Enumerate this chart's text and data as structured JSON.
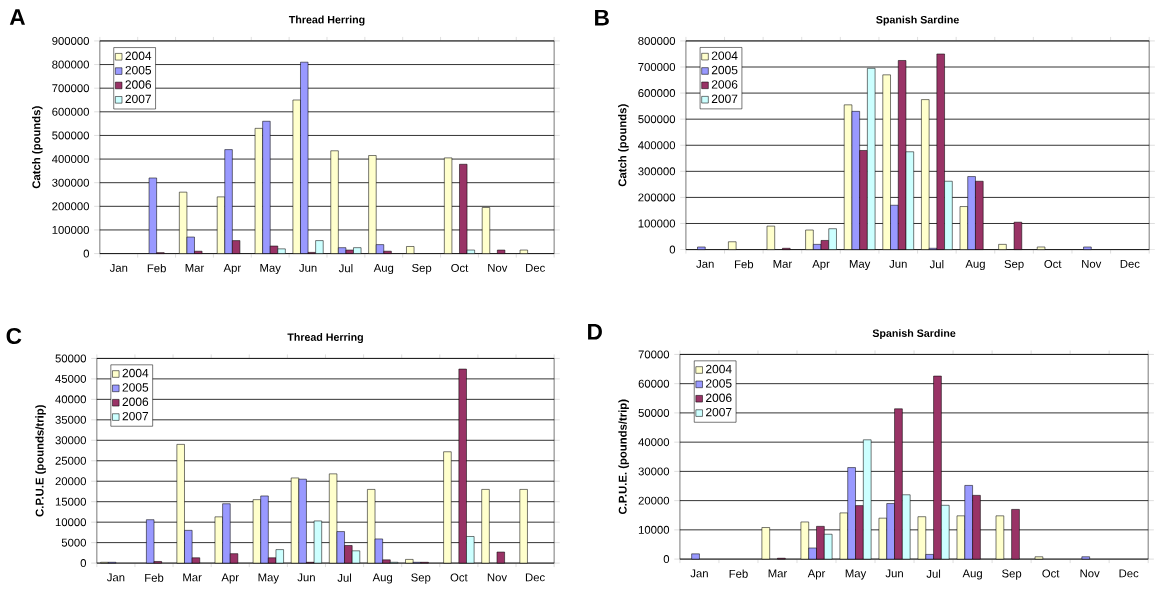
{
  "chart_data": [
    {
      "type": "bar",
      "title": "Thread Herring",
      "ylabel": "Catch (pounds)",
      "annotations": [
        "A"
      ],
      "categories": [
        "Jan",
        "Feb",
        "Mar",
        "Apr",
        "May",
        "Jun",
        "Jul",
        "Aug",
        "Sep",
        "Oct",
        "Nov",
        "Dec"
      ],
      "series": [
        {
          "name": "2004",
          "color": "#ffffcc",
          "values": [
            null,
            null,
            260000,
            240000,
            530000,
            650000,
            435000,
            415000,
            30000,
            405000,
            195000,
            15000
          ]
        },
        {
          "name": "2005",
          "color": "#9999ff",
          "values": [
            null,
            320000,
            70000,
            440000,
            560000,
            810000,
            25000,
            38000,
            null,
            null,
            null,
            null
          ]
        },
        {
          "name": "2006",
          "color": "#993366",
          "values": [
            null,
            4000,
            10000,
            55000,
            32000,
            5000,
            15000,
            10000,
            null,
            378000,
            15000,
            null
          ]
        },
        {
          "name": "2007",
          "color": "#ccffff",
          "values": [
            null,
            null,
            null,
            null,
            20000,
            55000,
            25000,
            null,
            null,
            15000,
            null,
            null
          ]
        }
      ],
      "ylim": [
        0,
        900000
      ],
      "yticks": [
        0,
        100000,
        200000,
        300000,
        400000,
        500000,
        600000,
        700000,
        800000,
        900000
      ],
      "grid": "y",
      "legend": "top left"
    },
    {
      "type": "bar",
      "title": "Spanish Sardine",
      "ylabel": "Catch (pounds)",
      "annotations": [
        "B"
      ],
      "categories": [
        "Jan",
        "Feb",
        "Mar",
        "Apr",
        "May",
        "Jun",
        "Jul",
        "Aug",
        "Sep",
        "Oct",
        "Nov",
        "Dec"
      ],
      "series": [
        {
          "name": "2004",
          "color": "#ffffcc",
          "values": [
            null,
            30000,
            90000,
            75000,
            555000,
            670000,
            575000,
            165000,
            20000,
            10000,
            null,
            null
          ]
        },
        {
          "name": "2005",
          "color": "#9999ff",
          "values": [
            10000,
            null,
            null,
            20000,
            530000,
            170000,
            5000,
            280000,
            null,
            null,
            10000,
            null
          ]
        },
        {
          "name": "2006",
          "color": "#993366",
          "values": [
            null,
            null,
            5000,
            35000,
            380000,
            725000,
            750000,
            262000,
            105000,
            null,
            null,
            null
          ]
        },
        {
          "name": "2007",
          "color": "#ccffff",
          "values": [
            null,
            null,
            null,
            80000,
            695000,
            375000,
            262000,
            null,
            null,
            null,
            null,
            null
          ]
        }
      ],
      "ylim": [
        0,
        800000
      ],
      "yticks": [
        0,
        100000,
        200000,
        300000,
        400000,
        500000,
        600000,
        700000,
        800000
      ],
      "grid": "y",
      "legend": "top left"
    },
    {
      "type": "bar",
      "title": "Thread Herring",
      "ylabel": "C.P.U.E (pounds/trip)",
      "annotations": [
        "C"
      ],
      "categories": [
        "Jan",
        "Feb",
        "Mar",
        "Apr",
        "May",
        "Jun",
        "Jul",
        "Aug",
        "Sep",
        "Oct",
        "Nov",
        "Dec"
      ],
      "series": [
        {
          "name": "2004",
          "color": "#ffffcc",
          "values": [
            200,
            null,
            29000,
            11300,
            15500,
            20800,
            21800,
            18000,
            900,
            27200,
            18000,
            18000
          ]
        },
        {
          "name": "2005",
          "color": "#9999ff",
          "values": [
            200,
            10600,
            8000,
            14500,
            16400,
            20500,
            7700,
            5900,
            200,
            null,
            null,
            null
          ]
        },
        {
          "name": "2006",
          "color": "#993366",
          "values": [
            null,
            400,
            1300,
            2300,
            1300,
            200,
            4300,
            800,
            200,
            47400,
            2700,
            null
          ]
        },
        {
          "name": "2007",
          "color": "#ccffff",
          "values": [
            null,
            null,
            null,
            null,
            3300,
            10300,
            3000,
            200,
            null,
            6500,
            null,
            null
          ]
        }
      ],
      "ylim": [
        0,
        50000
      ],
      "yticks": [
        0,
        5000,
        10000,
        15000,
        20000,
        25000,
        30000,
        35000,
        40000,
        45000,
        50000
      ],
      "grid": "y",
      "legend": "top left"
    },
    {
      "type": "bar",
      "title": "Spanish Sardine",
      "ylabel": "C.P.U.E. (pounds/trip)",
      "annotations": [
        "D"
      ],
      "categories": [
        "Jan",
        "Feb",
        "Mar",
        "Apr",
        "May",
        "Jun",
        "Jul",
        "Aug",
        "Sep",
        "Oct",
        "Nov",
        "Dec"
      ],
      "series": [
        {
          "name": "2004",
          "color": "#ffffcc",
          "values": [
            null,
            null,
            10800,
            12700,
            15800,
            14000,
            14500,
            14800,
            14800,
            800,
            null,
            null
          ]
        },
        {
          "name": "2005",
          "color": "#9999ff",
          "values": [
            1800,
            null,
            null,
            3800,
            31300,
            19000,
            1600,
            25200,
            null,
            null,
            800,
            null
          ]
        },
        {
          "name": "2006",
          "color": "#993366",
          "values": [
            null,
            null,
            300,
            11200,
            18300,
            51400,
            62600,
            21800,
            17000,
            null,
            null,
            null
          ]
        },
        {
          "name": "2007",
          "color": "#ccffff",
          "values": [
            null,
            null,
            null,
            8500,
            40800,
            22000,
            18400,
            null,
            null,
            null,
            null,
            null
          ]
        }
      ],
      "ylim": [
        0,
        70000
      ],
      "yticks": [
        0,
        10000,
        20000,
        30000,
        40000,
        50000,
        60000,
        70000
      ],
      "grid": "y",
      "legend": "top left"
    }
  ]
}
